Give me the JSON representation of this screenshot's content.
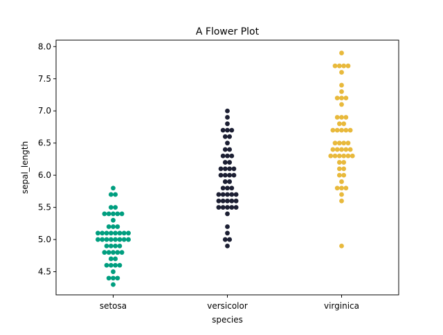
{
  "chart_data": {
    "type": "scatter",
    "title": "A Flower Plot",
    "xlabel": "species",
    "ylabel": "sepal_length",
    "ylim": [
      4.14,
      8.1
    ],
    "yticks": [
      "4.5",
      "5.0",
      "5.5",
      "6.0",
      "6.5",
      "7.0",
      "7.5",
      "8.0"
    ],
    "grid": false,
    "legend": "none",
    "categories": [
      "setosa",
      "versicolor",
      "virginica"
    ],
    "series": [
      {
        "category": "setosa",
        "color": "#009e7f",
        "values": [
          5.1,
          4.9,
          4.7,
          4.6,
          5.0,
          5.4,
          4.6,
          5.0,
          4.4,
          4.9,
          5.4,
          4.8,
          4.8,
          4.3,
          5.8,
          5.7,
          5.4,
          5.1,
          5.7,
          5.1,
          5.4,
          5.1,
          4.6,
          5.1,
          4.8,
          5.0,
          5.0,
          5.2,
          5.2,
          4.7,
          4.8,
          5.4,
          5.2,
          5.5,
          4.9,
          5.0,
          5.5,
          4.9,
          4.4,
          5.1,
          5.0,
          4.5,
          4.4,
          5.0,
          5.1,
          4.8,
          5.1,
          4.6,
          5.3,
          5.0
        ]
      },
      {
        "category": "versicolor",
        "color": "#1c1f33",
        "values": [
          7.0,
          6.4,
          6.9,
          5.5,
          6.5,
          5.7,
          6.3,
          4.9,
          6.6,
          5.2,
          5.0,
          5.9,
          6.0,
          6.1,
          5.6,
          6.7,
          5.6,
          5.8,
          6.2,
          5.6,
          5.9,
          6.1,
          6.3,
          6.1,
          6.4,
          6.6,
          6.8,
          6.7,
          6.0,
          5.7,
          5.5,
          5.5,
          5.8,
          6.0,
          5.4,
          6.0,
          6.7,
          6.3,
          5.6,
          5.5,
          5.5,
          6.1,
          5.8,
          5.0,
          5.6,
          5.7,
          5.7,
          6.2,
          5.1,
          5.7
        ]
      },
      {
        "category": "virginica",
        "color": "#e8b93c",
        "values": [
          6.3,
          5.8,
          7.1,
          6.3,
          6.5,
          7.6,
          4.9,
          7.3,
          6.7,
          7.2,
          6.5,
          6.4,
          6.8,
          5.7,
          5.8,
          6.4,
          6.5,
          7.7,
          7.7,
          6.0,
          6.9,
          5.6,
          7.7,
          6.3,
          6.7,
          7.2,
          6.2,
          6.1,
          6.4,
          7.2,
          7.4,
          7.9,
          6.4,
          6.3,
          6.1,
          7.7,
          6.3,
          6.4,
          6.0,
          6.9,
          6.7,
          6.9,
          5.8,
          6.8,
          6.7,
          6.7,
          6.3,
          6.5,
          6.2,
          5.9
        ]
      }
    ]
  }
}
